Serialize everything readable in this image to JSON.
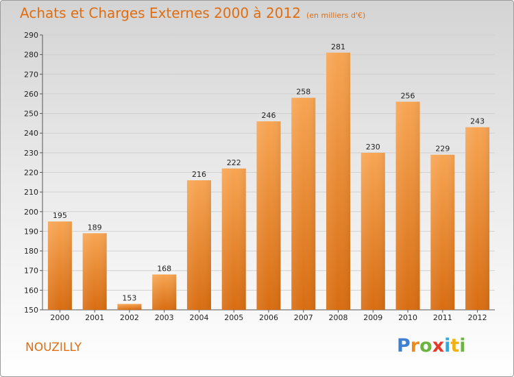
{
  "title": "Achats et Charges Externes 2000 à 2012",
  "unit": "(en milliers d'€)",
  "place": "NOUZILLY",
  "logo": {
    "p": "P",
    "r": "r",
    "o": "o",
    "x": "x",
    "i1": "i",
    "t": "t",
    "i2": "i"
  },
  "chart_data": {
    "type": "bar",
    "categories": [
      "2000",
      "2001",
      "2002",
      "2003",
      "2004",
      "2005",
      "2006",
      "2007",
      "2008",
      "2009",
      "2010",
      "2011",
      "2012"
    ],
    "values": [
      195,
      189,
      153,
      168,
      216,
      222,
      246,
      258,
      281,
      230,
      256,
      229,
      243
    ],
    "ylim": [
      150,
      290
    ],
    "yticks": [
      150,
      160,
      170,
      180,
      190,
      200,
      210,
      220,
      230,
      240,
      250,
      260,
      270,
      280,
      290
    ],
    "grid": true,
    "bar_color": "#f0882a"
  }
}
